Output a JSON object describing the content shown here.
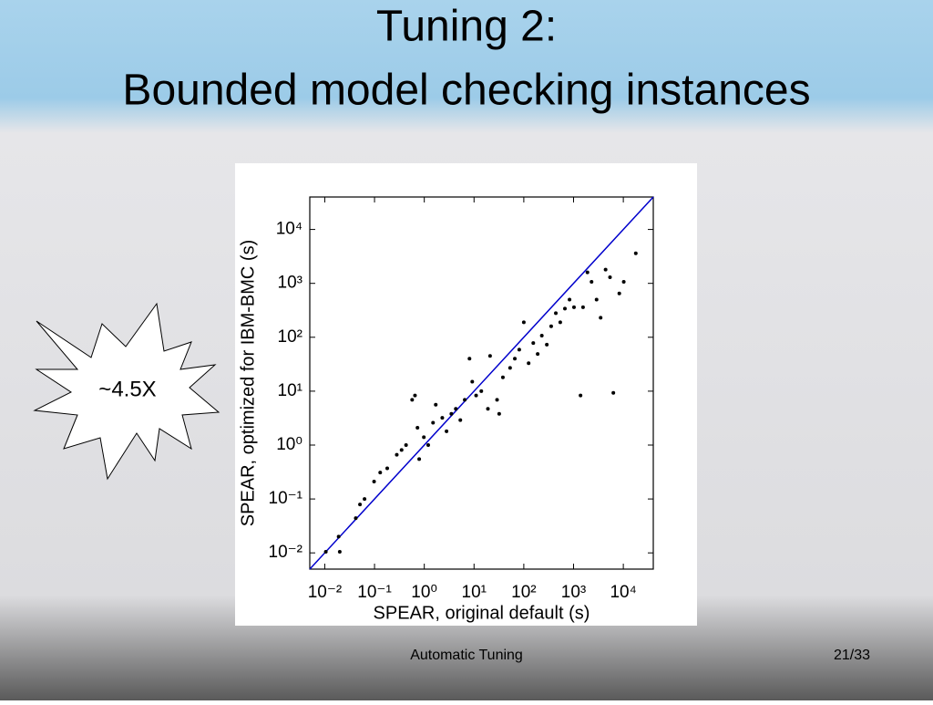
{
  "slide": {
    "title_line1": "Tuning 2:",
    "title_line2": "Bounded model checking instances",
    "callout": "~4.5X",
    "footer": "Automatic Tuning",
    "page": "21/33"
  },
  "chart_data": {
    "type": "scatter",
    "x_label": "SPEAR, original default (s)",
    "y_label": "SPEAR, optimized for IBM-BMC (s)",
    "xscale": "log",
    "yscale": "log",
    "xlim": [
      0.005,
      40000
    ],
    "ylim": [
      0.005,
      40000
    ],
    "xticks": [
      {
        "value": 0.01,
        "label": "10⁻²"
      },
      {
        "value": 0.1,
        "label": "10⁻¹"
      },
      {
        "value": 1,
        "label": "10⁰"
      },
      {
        "value": 10,
        "label": "10¹"
      },
      {
        "value": 100,
        "label": "10²"
      },
      {
        "value": 1000,
        "label": "10³"
      },
      {
        "value": 10000,
        "label": "10⁴"
      }
    ],
    "yticks": [
      {
        "value": 0.01,
        "label": "10⁻²"
      },
      {
        "value": 0.1,
        "label": "10⁻¹"
      },
      {
        "value": 1,
        "label": "10⁰"
      },
      {
        "value": 10,
        "label": "10¹"
      },
      {
        "value": 100,
        "label": "10²"
      },
      {
        "value": 1000,
        "label": "10³"
      },
      {
        "value": 10000,
        "label": "10⁴"
      }
    ],
    "color": "#000000",
    "line_color": "#0000cc",
    "x": [
      0.0105,
      0.019,
      0.02,
      0.042,
      0.051,
      0.063,
      0.098,
      0.13,
      0.18,
      0.28,
      0.35,
      0.43,
      0.57,
      0.65,
      0.73,
      0.79,
      0.98,
      1.2,
      1.5,
      1.7,
      2.3,
      2.8,
      3.5,
      4.3,
      5.3,
      6.5,
      8.1,
      9.2,
      11,
      14,
      19,
      21,
      29,
      32,
      38,
      53,
      66,
      81,
      100,
      125,
      155,
      190,
      230,
      290,
      355,
      440,
      540,
      670,
      830,
      1020,
      1380,
      1550,
      1900,
      2300,
      2900,
      3500,
      4400,
      5400,
      6300,
      8300,
      10200,
      17800
    ],
    "y": [
      0.0105,
      0.02,
      0.0105,
      0.044,
      0.079,
      0.1,
      0.21,
      0.31,
      0.37,
      0.66,
      0.81,
      1.0,
      6.9,
      8.3,
      2.1,
      0.55,
      1.4,
      1.0,
      2.6,
      5.6,
      3.2,
      1.8,
      3.8,
      4.7,
      2.9,
      6.9,
      40,
      15,
      8.3,
      10,
      4.7,
      45,
      6.9,
      3.8,
      18,
      27,
      40,
      59,
      190,
      33,
      78,
      49,
      107,
      73,
      160,
      280,
      190,
      340,
      500,
      360,
      8.3,
      360,
      1600,
      1070,
      500,
      230,
      1800,
      1300,
      9.3,
      650,
      1070,
      3600
    ]
  }
}
